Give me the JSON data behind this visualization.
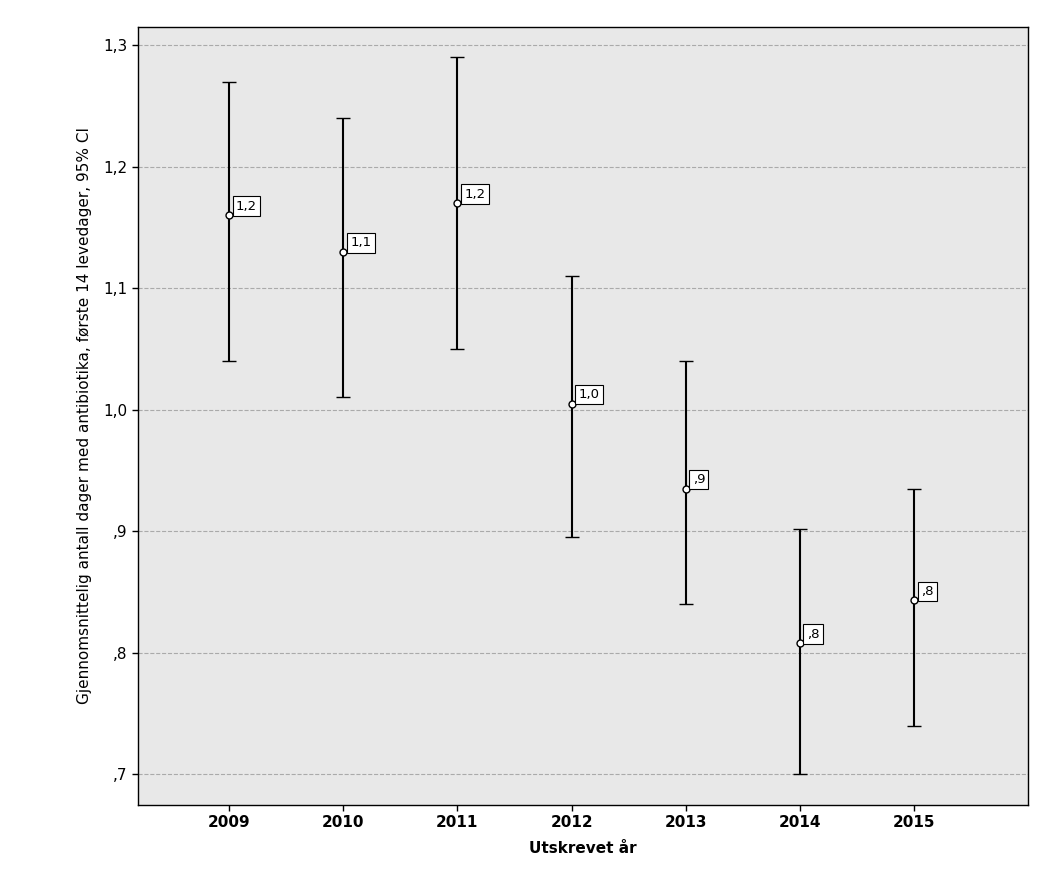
{
  "years": [
    2009,
    2010,
    2011,
    2012,
    2013,
    2014,
    2015
  ],
  "means": [
    1.16,
    1.13,
    1.17,
    1.005,
    0.935,
    0.808,
    0.843
  ],
  "ci_upper": [
    1.27,
    1.24,
    1.29,
    1.11,
    1.04,
    0.902,
    0.935
  ],
  "ci_lower": [
    1.04,
    1.01,
    1.05,
    0.895,
    0.84,
    0.7,
    0.74
  ],
  "labels": [
    "1,2",
    "1,1",
    "1,2",
    "1,0",
    ",9",
    ",8",
    ",8"
  ],
  "xlabel": "Utskrevet år",
  "ylabel": "Gjennomsnittelig antall dager med antibiotika, første 14 levedager, 95% CI",
  "ylim": [
    0.675,
    1.315
  ],
  "yticks": [
    0.7,
    0.8,
    0.9,
    1.0,
    1.1,
    1.2,
    1.3
  ],
  "ytick_labels": [
    ",7",
    ",8",
    ",9",
    "1,0",
    "1,1",
    "1,2",
    "1,3"
  ],
  "xlim": [
    2008.2,
    2016.0
  ],
  "figure_facecolor": "#ffffff",
  "axes_facecolor": "#e8e8e8",
  "grid_color": "#aaaaaa",
  "line_color": "#000000",
  "marker_facecolor": "#ffffff",
  "marker_edgecolor": "#000000",
  "box_facecolor": "#ffffff",
  "box_edgecolor": "#000000",
  "spine_color": "#000000",
  "label_fontsize": 9.5,
  "tick_fontsize": 11,
  "axis_label_fontsize": 11,
  "cap_size": 5,
  "elinewidth": 1.5,
  "capthick": 1.5,
  "markersize": 5
}
